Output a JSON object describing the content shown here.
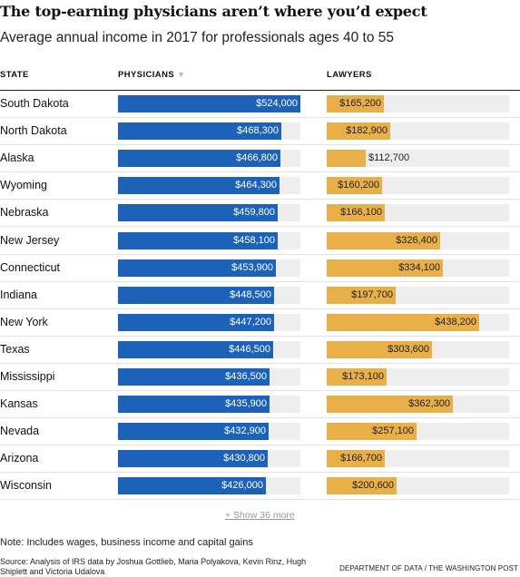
{
  "header": {
    "title": "The top-earning physicians aren’t where you’d expect",
    "subtitle": "Average annual income in 2017 for professionals ages 40 to 55"
  },
  "columns": {
    "state": "STATE",
    "physicians": "PHYSICIANS",
    "lawyers": "LAWYERS",
    "sort_icon": "▼"
  },
  "chart_data": {
    "type": "bar",
    "categories": [
      "South Dakota",
      "North Dakota",
      "Alaska",
      "Wyoming",
      "Nebraska",
      "New Jersey",
      "Connecticut",
      "Indiana",
      "New York",
      "Texas",
      "Mississippi",
      "Kansas",
      "Nevada",
      "Arizona",
      "Wisconsin"
    ],
    "series": [
      {
        "name": "PHYSICIANS",
        "values": [
          524000,
          468300,
          466800,
          464300,
          459800,
          458100,
          453900,
          448500,
          447200,
          446500,
          436500,
          435900,
          432900,
          430800,
          426000
        ]
      },
      {
        "name": "LAWYERS",
        "values": [
          165200,
          182900,
          112700,
          160200,
          166100,
          326400,
          334100,
          197700,
          438200,
          303600,
          173100,
          362300,
          257100,
          166700,
          200600
        ]
      }
    ],
    "labels": {
      "physicians": [
        "$524,000",
        "$468,300",
        "$466,800",
        "$464,300",
        "$459,800",
        "$458,100",
        "$453,900",
        "$448,500",
        "$447,200",
        "$446,500",
        "$436,500",
        "$435,900",
        "$432,900",
        "$430,800",
        "$426,000"
      ],
      "lawyers": [
        "$165,200",
        "$182,900",
        "$112,700",
        "$160,200",
        "$166,100",
        "$326,400",
        "$334,100",
        "$197,700",
        "$438,200",
        "$303,600",
        "$173,100",
        "$362,300",
        "$257,100",
        "$166,700",
        "$200,600"
      ]
    },
    "max": 524000
  },
  "show_more": "+ Show 36 more",
  "footer": {
    "note": "Note: Includes wages, business income and capital gains",
    "source": "Source: Analysis of IRS data by Joshua Gottlieb, Maria Polyakova, Kevin Rinz, Hugh Shiplett and Victoria Udalova",
    "credit": "DEPARTMENT OF DATA / THE WASHINGTON POST"
  },
  "colors": {
    "physicians": "#1c62b8",
    "lawyers": "#e9b04a",
    "track": "#eeeeee"
  }
}
